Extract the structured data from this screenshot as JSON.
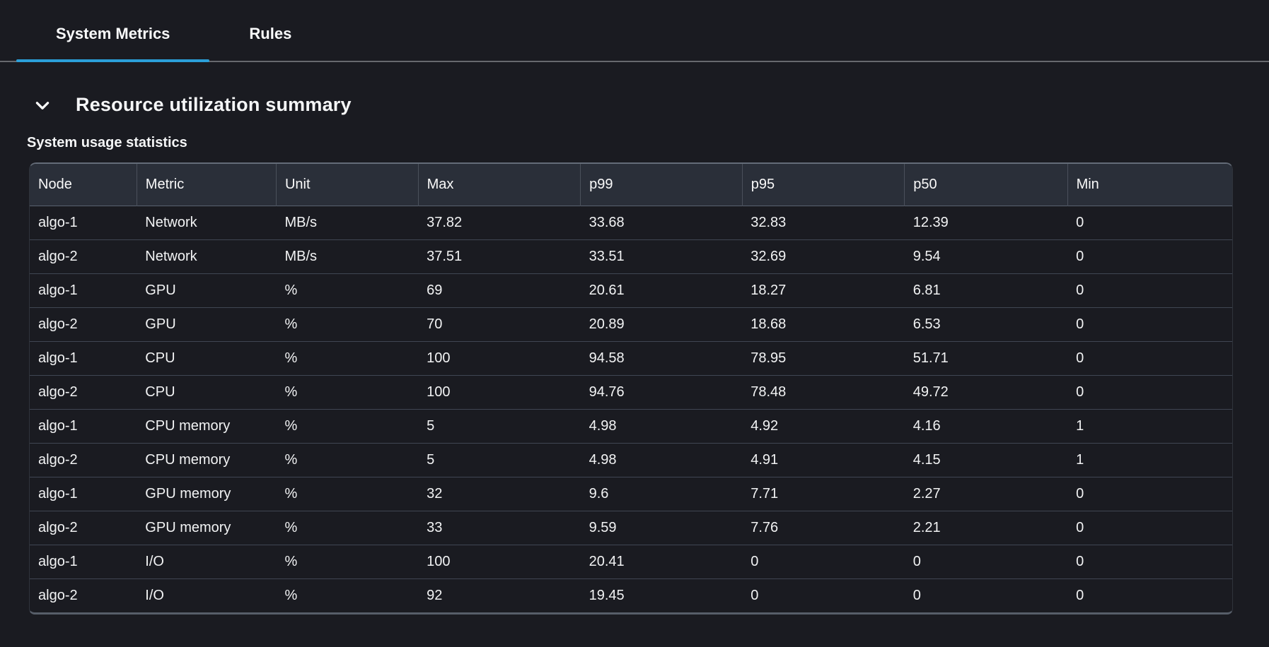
{
  "tabs": [
    {
      "label": "System Metrics",
      "active": true
    },
    {
      "label": "Rules",
      "active": false
    }
  ],
  "section": {
    "title": "Resource utilization summary",
    "collapse_icon": "chevron-down-icon",
    "expanded": true
  },
  "table": {
    "title": "System usage statistics",
    "columns": [
      "Node",
      "Metric",
      "Unit",
      "Max",
      "p99",
      "p95",
      "p50",
      "Min"
    ],
    "rows": [
      [
        "algo-1",
        "Network",
        "MB/s",
        "37.82",
        "33.68",
        "32.83",
        "12.39",
        "0"
      ],
      [
        "algo-2",
        "Network",
        "MB/s",
        "37.51",
        "33.51",
        "32.69",
        "9.54",
        "0"
      ],
      [
        "algo-1",
        "GPU",
        "%",
        "69",
        "20.61",
        "18.27",
        "6.81",
        "0"
      ],
      [
        "algo-2",
        "GPU",
        "%",
        "70",
        "20.89",
        "18.68",
        "6.53",
        "0"
      ],
      [
        "algo-1",
        "CPU",
        "%",
        "100",
        "94.58",
        "78.95",
        "51.71",
        "0"
      ],
      [
        "algo-2",
        "CPU",
        "%",
        "100",
        "94.76",
        "78.48",
        "49.72",
        "0"
      ],
      [
        "algo-1",
        "CPU memory",
        "%",
        "5",
        "4.98",
        "4.92",
        "4.16",
        "1"
      ],
      [
        "algo-2",
        "CPU memory",
        "%",
        "5",
        "4.98",
        "4.91",
        "4.15",
        "1"
      ],
      [
        "algo-1",
        "GPU memory",
        "%",
        "32",
        "9.6",
        "7.71",
        "2.27",
        "0"
      ],
      [
        "algo-2",
        "GPU memory",
        "%",
        "33",
        "9.59",
        "7.76",
        "2.21",
        "0"
      ],
      [
        "algo-1",
        "I/O",
        "%",
        "100",
        "20.41",
        "0",
        "0",
        "0"
      ],
      [
        "algo-2",
        "I/O",
        "%",
        "92",
        "19.45",
        "0",
        "0",
        "0"
      ]
    ]
  },
  "colors": {
    "page_background": "#1a1b21",
    "table_header_background": "#2a2f39",
    "active_tab_underline": "#2b9fd9",
    "tab_divider": "#67696e",
    "row_separator": "#404653",
    "text": "#f5f6f7"
  }
}
